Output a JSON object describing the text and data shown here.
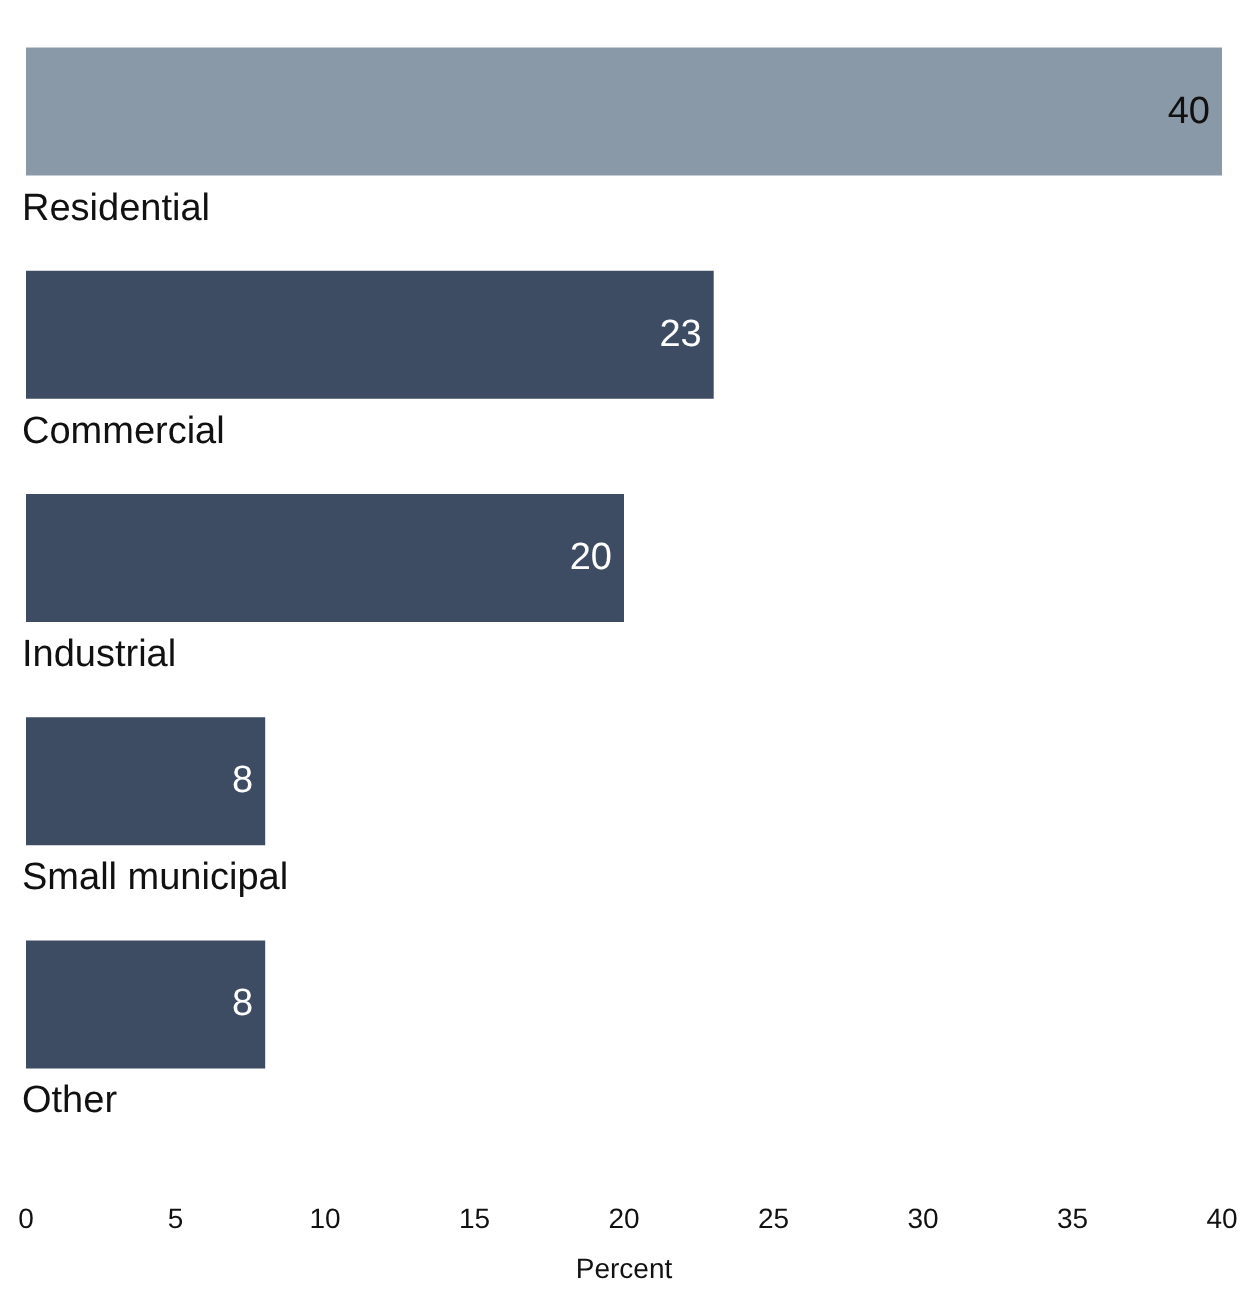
{
  "chart_data": {
    "type": "bar",
    "orientation": "horizontal",
    "xlabel": "Percent",
    "categories": [
      "Residential",
      "Commercial",
      "Industrial",
      "Small municipal",
      "Other"
    ],
    "values": [
      40,
      23,
      20,
      8,
      8
    ],
    "colors": [
      "#8a99a8",
      "#3d4b63",
      "#3d4b63",
      "#3d4b63",
      "#3d4b63"
    ],
    "xlim": [
      0,
      40
    ],
    "xticks": [
      0,
      5,
      10,
      15,
      20,
      25,
      30,
      35,
      40
    ],
    "data_labels": true,
    "grid": false
  }
}
